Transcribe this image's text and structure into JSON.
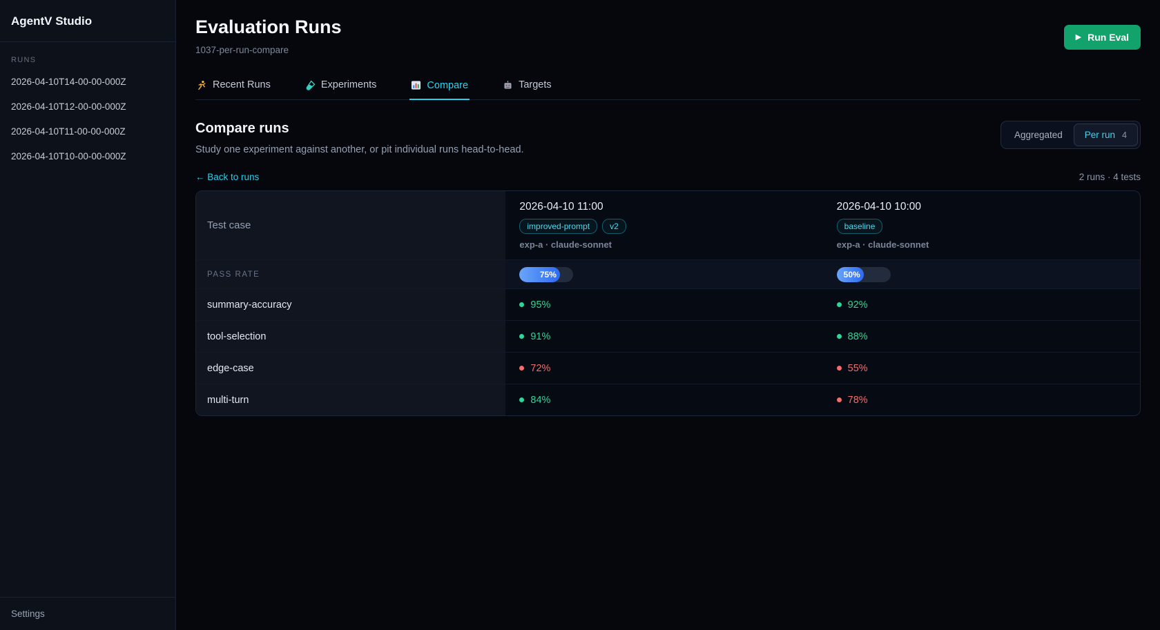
{
  "sidebar": {
    "title": "AgentV Studio",
    "section_label": "RUNS",
    "runs": [
      "2026-04-10T14-00-00-000Z",
      "2026-04-10T12-00-00-000Z",
      "2026-04-10T11-00-00-000Z",
      "2026-04-10T10-00-00-000Z"
    ],
    "settings_label": "Settings"
  },
  "header": {
    "title": "Evaluation Runs",
    "subtitle": "1037-per-run-compare",
    "play_icon": "▶",
    "run_eval_label": "Run Eval"
  },
  "tabs": [
    {
      "label": "Recent Runs",
      "icon": "runner-icon",
      "active": false
    },
    {
      "label": "Experiments",
      "icon": "test-tube-icon",
      "active": false
    },
    {
      "label": "Compare",
      "icon": "bar-chart-icon",
      "active": true
    },
    {
      "label": "Targets",
      "icon": "robot-icon",
      "active": false
    }
  ],
  "compare": {
    "heading": "Compare runs",
    "description": "Study one experiment against another, or pit individual runs head-to-head.",
    "back_link": "← Back to runs",
    "runs_summary": "2 runs · 4 tests",
    "toggle": {
      "aggregated_label": "Aggregated",
      "per_run_label": "Per run",
      "per_run_count": "4"
    }
  },
  "table": {
    "test_case_header": "Test case",
    "pass_rate_label": "PASS RATE",
    "runs": [
      {
        "title": "2026-04-10 11:00",
        "badges": [
          "improved-prompt",
          "v2"
        ],
        "meta": "exp-a · claude-sonnet",
        "pass_rate_text": "75%",
        "pass_rate_pct": 75
      },
      {
        "title": "2026-04-10 10:00",
        "badges": [
          "baseline"
        ],
        "meta": "exp-a · claude-sonnet",
        "pass_rate_text": "50%",
        "pass_rate_pct": 50
      }
    ],
    "rows": [
      {
        "test": "summary-accuracy",
        "values": [
          {
            "text": "95%",
            "status": "pass"
          },
          {
            "text": "92%",
            "status": "pass"
          }
        ]
      },
      {
        "test": "tool-selection",
        "values": [
          {
            "text": "91%",
            "status": "pass"
          },
          {
            "text": "88%",
            "status": "pass"
          }
        ]
      },
      {
        "test": "edge-case",
        "values": [
          {
            "text": "72%",
            "status": "fail"
          },
          {
            "text": "55%",
            "status": "fail"
          }
        ]
      },
      {
        "test": "multi-turn",
        "values": [
          {
            "text": "84%",
            "status": "pass"
          },
          {
            "text": "78%",
            "status": "fail"
          }
        ]
      }
    ]
  },
  "colors": {
    "accent_cyan": "#22d3ee",
    "pass_green": "#34d399",
    "fail_red": "#f26d6d",
    "run_eval_green": "#12a26b",
    "bar_fill_start": "#69a5f9",
    "bar_fill_end": "#2e6bf2"
  }
}
